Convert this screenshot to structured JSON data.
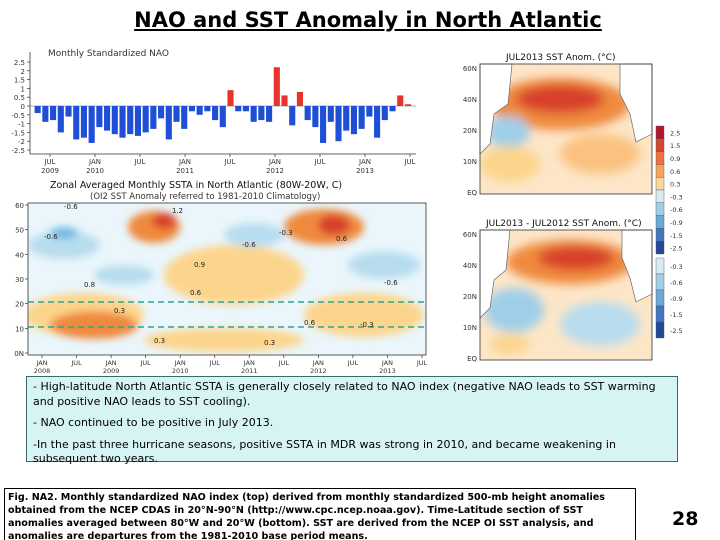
{
  "slide": {
    "title": "NAO and SST Anomaly in North Atlantic",
    "page_number": "28"
  },
  "nao_panel": {
    "label": "Monthly Standardized NAO",
    "y_ticks": [
      "2.5",
      "2",
      "1.5",
      "1",
      "0.5",
      "0",
      "-0.5",
      "-1",
      "-1.5",
      "-2",
      "-2.5"
    ],
    "x_ticks": [
      {
        "top": "JUL",
        "bottom": "2009"
      },
      {
        "top": "JAN",
        "bottom": "2010"
      },
      {
        "top": "JUL",
        "bottom": ""
      },
      {
        "top": "JAN",
        "bottom": "2011"
      },
      {
        "top": "JUL",
        "bottom": ""
      },
      {
        "top": "JAN",
        "bottom": "2012"
      },
      {
        "top": "JUL",
        "bottom": ""
      },
      {
        "top": "JAN",
        "bottom": "2013"
      },
      {
        "top": "JUL",
        "bottom": ""
      }
    ]
  },
  "chart_data": [
    {
      "type": "bar",
      "title": "Monthly Standardized NAO",
      "ylim": [
        -2.5,
        2.5
      ],
      "x": [
        "2009-07",
        "2009-08",
        "2009-09",
        "2009-10",
        "2009-11",
        "2009-12",
        "2010-01",
        "2010-02",
        "2010-03",
        "2010-04",
        "2010-05",
        "2010-06",
        "2010-07",
        "2010-08",
        "2010-09",
        "2010-10",
        "2010-11",
        "2010-12",
        "2011-01",
        "2011-02",
        "2011-03",
        "2011-04",
        "2011-05",
        "2011-06",
        "2011-07",
        "2011-08",
        "2011-09",
        "2011-10",
        "2011-11",
        "2011-12",
        "2012-01",
        "2012-02",
        "2012-03",
        "2012-04",
        "2012-05",
        "2012-06",
        "2012-07",
        "2012-08",
        "2012-09",
        "2012-10",
        "2012-11",
        "2012-12",
        "2013-01",
        "2013-02",
        "2013-03",
        "2013-04",
        "2013-05",
        "2013-06",
        "2013-07"
      ],
      "values": [
        -0.4,
        -0.9,
        -0.8,
        -1.5,
        -0.6,
        -1.9,
        -1.8,
        -2.1,
        -1.2,
        -1.4,
        -1.6,
        -1.8,
        -1.6,
        -1.7,
        -1.5,
        -1.3,
        -0.7,
        -1.9,
        -0.9,
        -1.3,
        -0.3,
        -0.5,
        -0.3,
        -0.8,
        -1.2,
        0.9,
        -0.3,
        -0.3,
        -0.9,
        -0.8,
        -0.9,
        2.2,
        0.6,
        -1.1,
        0.8,
        -0.8,
        -1.2,
        -2.1,
        -0.9,
        -2.0,
        -1.4,
        -1.6,
        -1.3,
        -0.6,
        -1.8,
        -0.8,
        -0.3,
        0.6,
        0.1
      ],
      "colors": {
        "positive": "#e8322a",
        "negative": "#1f4fd6"
      }
    },
    {
      "type": "heatmap",
      "title": "Zonal Averaged Monthly SSTA in North Atlantic (80W-20W, C)",
      "subtitle": "(OI2 SST Anomaly referred to 1981-2010 Climatology)",
      "y_ticks": [
        "60",
        "50",
        "40",
        "30",
        "20",
        "10",
        "0N"
      ],
      "x_ticks": [
        "JAN 2008",
        "JUL",
        "JAN 2009",
        "JUL",
        "JAN 2010",
        "JUL",
        "JAN 2011",
        "JUL",
        "JAN 2012",
        "JUL",
        "JAN 2013",
        "JUL"
      ],
      "contour_labels": [
        "-0.6",
        "1.2",
        "-0.6",
        "0.6",
        "-0.3",
        "-0.6",
        "0.8",
        "0.6",
        "0.3",
        "0.6",
        "-0.3",
        "0.9",
        "0.3",
        "0.3",
        "-0.6"
      ],
      "colors": {
        "warm": "#ef8a3d",
        "hot": "#d8402a",
        "cool": "#6fb7e4",
        "light_warm": "#fcd58c",
        "light_cool": "#b8ddef"
      },
      "reference_lines_lat": [
        20,
        10
      ]
    }
  ],
  "map_panel": {
    "top_title": "JUL2013 SST Anom. (°C)",
    "bottom_title": "JUL2013 - JUL2012 SST Anom. (°C)",
    "top_y_ticks": [
      "60N",
      "40N",
      "20N",
      "10N",
      "EQ"
    ],
    "bottom_y_ticks": [
      "60N",
      "40N",
      "20N",
      "10N",
      "EQ"
    ],
    "colorbar_top": [
      "2.5",
      "1.5",
      "0.9",
      "0.6",
      "0.3",
      "-0.3",
      "-0.6",
      "-0.9",
      "-1.5",
      "-2.5"
    ],
    "colorbar_bottom": [
      "-0.3",
      "-0.6",
      "-0.9",
      "-1.5",
      "-2.5"
    ]
  },
  "caption": {
    "p1": "- High-latitude North Atlantic SSTA is generally closely related to NAO index (negative NAO  leads to SST warming and positive NAO leads to SST cooling).",
    "p2": "- NAO continued to be positive in July 2013.",
    "p3": "-In the past three hurricane seasons,  positive SSTA in MDR was strong in 2010, and became weakening in subsequent two years."
  },
  "figure_caption": "Fig. NA2. Monthly standardized NAO index (top) derived from monthly standardized 500-mb height anomalies obtained from the NCEP CDAS in 20°N-90°N (http://www.cpc.ncep.noaa.gov). Time-Latitude section of SST anomalies averaged between 80°W and 20°W (bottom). SST are derived from the NCEP OI SST analysis, and anomalies are departures from the 1981-2010 base period means."
}
